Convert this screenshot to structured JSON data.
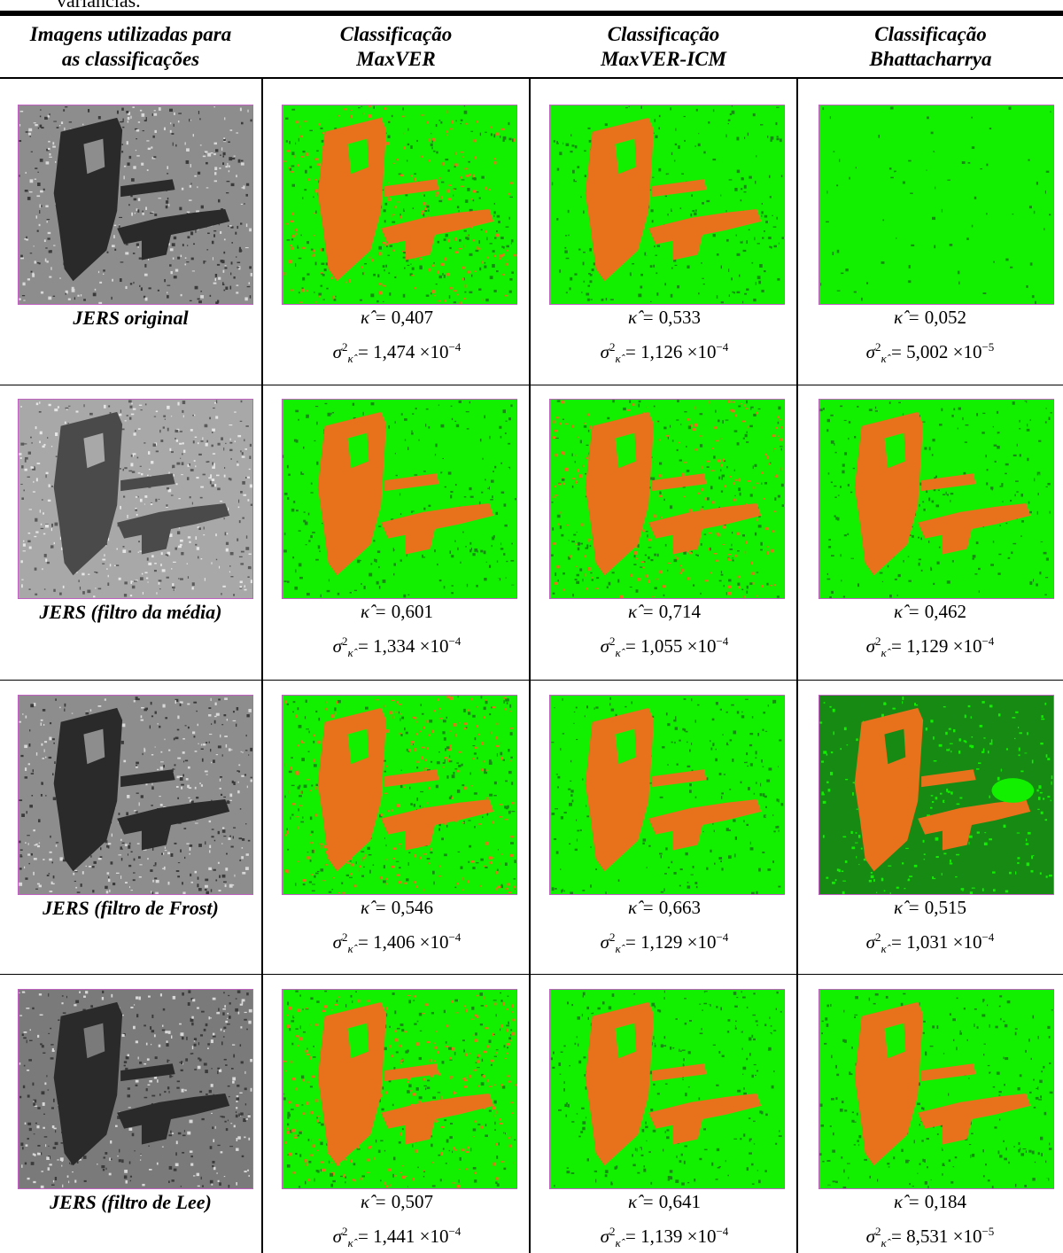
{
  "caption_fragment": "variâncias.",
  "headers": [
    {
      "line1": "Imagens utilizadas para",
      "line2": "as classificações"
    },
    {
      "line1": "Classificação",
      "line2": "MaxVER"
    },
    {
      "line1": "Classificação",
      "line2": "MaxVER-ICM"
    },
    {
      "line1": "Classificação",
      "line2": "Bhattacharrya"
    }
  ],
  "rows": [
    {
      "label": "JERS original",
      "cells": [
        {
          "kappa": "0,407",
          "variance": "1,474",
          "exponent": "−4"
        },
        {
          "kappa": "0,533",
          "variance": "1,126",
          "exponent": "−4"
        },
        {
          "kappa": "0,052",
          "variance": "5,002",
          "exponent": "−5"
        }
      ]
    },
    {
      "label": "JERS (filtro da média)",
      "cells": [
        {
          "kappa": "0,601",
          "variance": "1,334",
          "exponent": "−4"
        },
        {
          "kappa": "0,714",
          "variance": "1,055",
          "exponent": "−4"
        },
        {
          "kappa": "0,462",
          "variance": "1,129",
          "exponent": "−4"
        }
      ]
    },
    {
      "label": "JERS (filtro de Frost)",
      "cells": [
        {
          "kappa": "0,546",
          "variance": "1,406",
          "exponent": "−4"
        },
        {
          "kappa": "0,663",
          "variance": "1,129",
          "exponent": "−4"
        },
        {
          "kappa": "0,515",
          "variance": "1,031",
          "exponent": "−4"
        }
      ]
    },
    {
      "label": "JERS (filtro de Lee)",
      "cells": [
        {
          "kappa": "0,507",
          "variance": "1,441",
          "exponent": "−4"
        },
        {
          "kappa": "0,641",
          "variance": "1,139",
          "exponent": "−4"
        },
        {
          "kappa": "0,184",
          "variance": "8,531",
          "exponent": "−5"
        }
      ]
    }
  ],
  "symbols": {
    "kappa": "κ̂ = ",
    "sigma": "σ",
    "times_ten": " ×10"
  },
  "colors": {
    "orange": "#e8721c",
    "bright_green": "#12f000",
    "dark_green": "#178a14",
    "gray_dark": "#2a2a2a",
    "gray_light": "#b8b8b8"
  }
}
